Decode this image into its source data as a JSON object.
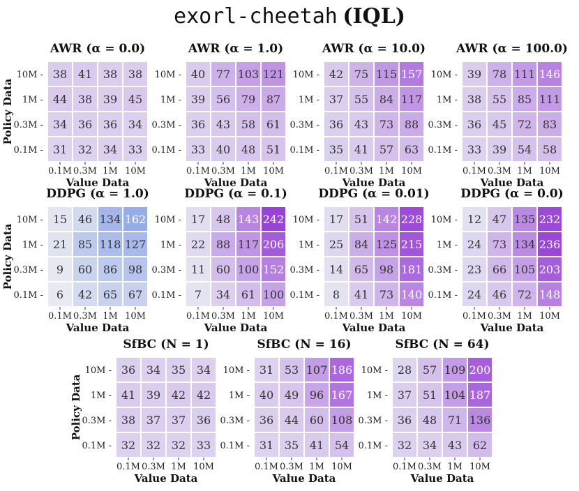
{
  "figure": {
    "title_env": "exorl-cheetah",
    "title_algo": "(IQL)",
    "x_axis_label": "Value Data",
    "y_axis_label": "Policy Data",
    "x_ticks": [
      "0.1M",
      "0.3M",
      "1M",
      "10M"
    ],
    "y_ticks": [
      "10M",
      "1M",
      "0.3M",
      "0.1M"
    ]
  },
  "chart_data": [
    {
      "type": "heatmap",
      "title": "AWR (α = 0.0)",
      "row": 0,
      "col": 0,
      "colormap": "purple",
      "xlabel": "Value Data",
      "ylabel": "Policy Data",
      "x_ticks": [
        "0.1M",
        "0.3M",
        "1M",
        "10M"
      ],
      "y_ticks": [
        "10M",
        "1M",
        "0.3M",
        "0.1M"
      ],
      "values": [
        [
          38,
          41,
          38,
          38
        ],
        [
          44,
          38,
          39,
          45
        ],
        [
          34,
          36,
          36,
          34
        ],
        [
          31,
          32,
          34,
          33
        ]
      ]
    },
    {
      "type": "heatmap",
      "title": "AWR (α = 1.0)",
      "row": 0,
      "col": 1,
      "colormap": "purple",
      "xlabel": "Value Data",
      "ylabel": "",
      "x_ticks": [
        "0.1M",
        "0.3M",
        "1M",
        "10M"
      ],
      "y_ticks": [
        "10M",
        "1M",
        "0.3M",
        "0.1M"
      ],
      "values": [
        [
          40,
          77,
          103,
          121
        ],
        [
          39,
          56,
          79,
          87
        ],
        [
          36,
          43,
          58,
          61
        ],
        [
          33,
          40,
          48,
          51
        ]
      ]
    },
    {
      "type": "heatmap",
      "title": "AWR (α = 10.0)",
      "row": 0,
      "col": 2,
      "colormap": "purple",
      "xlabel": "Value Data",
      "ylabel": "",
      "x_ticks": [
        "0.1M",
        "0.3M",
        "1M",
        "10M"
      ],
      "y_ticks": [
        "10M",
        "1M",
        "0.3M",
        "0.1M"
      ],
      "values": [
        [
          42,
          75,
          115,
          157
        ],
        [
          37,
          55,
          84,
          117
        ],
        [
          36,
          43,
          73,
          88
        ],
        [
          35,
          41,
          57,
          63
        ]
      ]
    },
    {
      "type": "heatmap",
      "title": "AWR (α = 100.0)",
      "row": 0,
      "col": 3,
      "colormap": "purple",
      "xlabel": "Value Data",
      "ylabel": "",
      "x_ticks": [
        "0.1M",
        "0.3M",
        "1M",
        "10M"
      ],
      "y_ticks": [
        "10M",
        "1M",
        "0.3M",
        "0.1M"
      ],
      "values": [
        [
          39,
          78,
          111,
          146
        ],
        [
          38,
          55,
          85,
          111
        ],
        [
          36,
          45,
          72,
          83
        ],
        [
          33,
          39,
          54,
          58
        ]
      ]
    },
    {
      "type": "heatmap",
      "title": "DDPG (α = 1.0)",
      "row": 1,
      "col": 0,
      "colormap": "blue",
      "xlabel": "Value Data",
      "ylabel": "Policy Data",
      "x_ticks": [
        "0.1M",
        "0.3M",
        "1M",
        "10M"
      ],
      "y_ticks": [
        "10M",
        "1M",
        "0.3M",
        "0.1M"
      ],
      "values": [
        [
          15,
          46,
          134,
          162
        ],
        [
          21,
          85,
          118,
          127
        ],
        [
          9,
          60,
          86,
          98
        ],
        [
          6,
          42,
          65,
          67
        ]
      ]
    },
    {
      "type": "heatmap",
      "title": "DDPG (α = 0.1)",
      "row": 1,
      "col": 1,
      "colormap": "purple",
      "xlabel": "Value Data",
      "ylabel": "",
      "x_ticks": [
        "0.1M",
        "0.3M",
        "1M",
        "10M"
      ],
      "y_ticks": [
        "10M",
        "1M",
        "0.3M",
        "0.1M"
      ],
      "values": [
        [
          17,
          48,
          143,
          242
        ],
        [
          22,
          88,
          117,
          206
        ],
        [
          11,
          60,
          100,
          152
        ],
        [
          7,
          34,
          61,
          100
        ]
      ]
    },
    {
      "type": "heatmap",
      "title": "DDPG (α = 0.01)",
      "row": 1,
      "col": 2,
      "colormap": "purple",
      "xlabel": "Value Data",
      "ylabel": "",
      "x_ticks": [
        "0.1M",
        "0.3M",
        "1M",
        "10M"
      ],
      "y_ticks": [
        "10M",
        "1M",
        "0.3M",
        "0.1M"
      ],
      "values": [
        [
          17,
          51,
          142,
          228
        ],
        [
          25,
          84,
          125,
          215
        ],
        [
          14,
          65,
          98,
          181
        ],
        [
          8,
          41,
          73,
          140
        ]
      ]
    },
    {
      "type": "heatmap",
      "title": "DDPG (α = 0.0)",
      "row": 1,
      "col": 3,
      "colormap": "purple",
      "xlabel": "Value Data",
      "ylabel": "",
      "x_ticks": [
        "0.1M",
        "0.3M",
        "1M",
        "10M"
      ],
      "y_ticks": [
        "10M",
        "1M",
        "0.3M",
        "0.1M"
      ],
      "values": [
        [
          12,
          47,
          135,
          232
        ],
        [
          24,
          73,
          134,
          236
        ],
        [
          23,
          66,
          105,
          203
        ],
        [
          24,
          46,
          72,
          148
        ]
      ]
    },
    {
      "type": "heatmap",
      "title": "SfBC (N = 1)",
      "row": 2,
      "col": 0,
      "colormap": "purple",
      "xlabel": "Value Data",
      "ylabel": "Policy Data",
      "x_ticks": [
        "0.1M",
        "0.3M",
        "1M",
        "10M"
      ],
      "y_ticks": [
        "10M",
        "1M",
        "0.3M",
        "0.1M"
      ],
      "values": [
        [
          36,
          34,
          35,
          34
        ],
        [
          41,
          39,
          42,
          42
        ],
        [
          38,
          37,
          37,
          36
        ],
        [
          32,
          32,
          32,
          33
        ]
      ]
    },
    {
      "type": "heatmap",
      "title": "SfBC (N = 16)",
      "row": 2,
      "col": 1,
      "colormap": "purple",
      "xlabel": "Value Data",
      "ylabel": "",
      "x_ticks": [
        "0.1M",
        "0.3M",
        "1M",
        "10M"
      ],
      "y_ticks": [
        "10M",
        "1M",
        "0.3M",
        "0.1M"
      ],
      "values": [
        [
          31,
          53,
          107,
          186
        ],
        [
          40,
          49,
          96,
          167
        ],
        [
          36,
          44,
          60,
          108
        ],
        [
          31,
          35,
          41,
          54
        ]
      ]
    },
    {
      "type": "heatmap",
      "title": "SfBC (N = 64)",
      "row": 2,
      "col": 2,
      "colormap": "purple",
      "xlabel": "Value Data",
      "ylabel": "",
      "x_ticks": [
        "0.1M",
        "0.3M",
        "1M",
        "10M"
      ],
      "y_ticks": [
        "10M",
        "1M",
        "0.3M",
        "0.1M"
      ],
      "values": [
        [
          28,
          57,
          109,
          200
        ],
        [
          37,
          51,
          104,
          187
        ],
        [
          36,
          48,
          71,
          136
        ],
        [
          32,
          34,
          43,
          62
        ]
      ]
    }
  ]
}
